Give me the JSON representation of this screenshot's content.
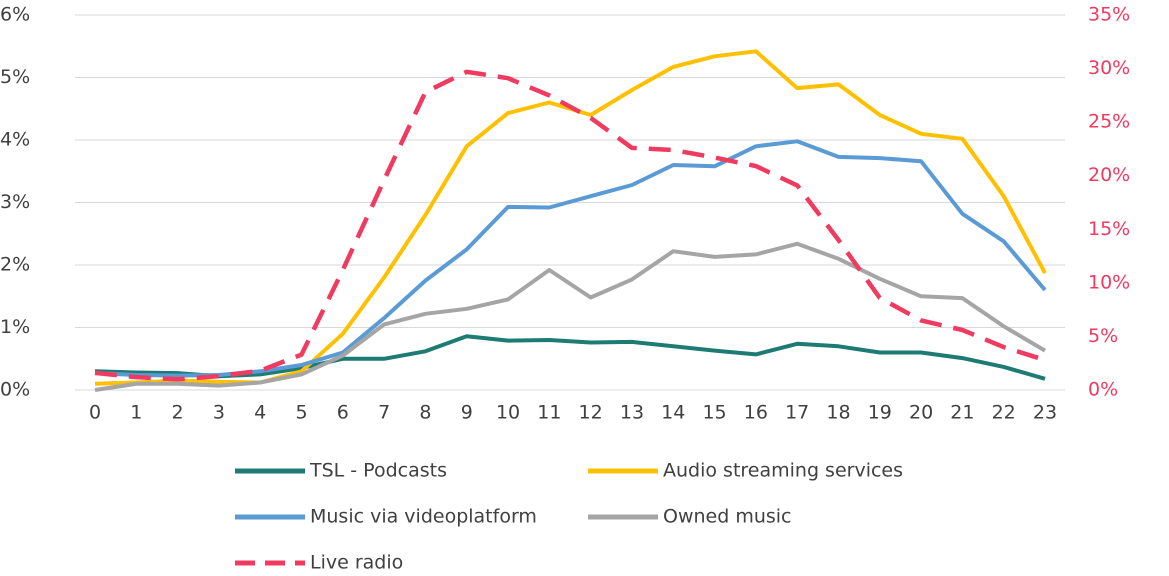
{
  "chart_data": {
    "type": "line",
    "categories": [
      "0",
      "1",
      "2",
      "3",
      "4",
      "5",
      "6",
      "7",
      "8",
      "9",
      "10",
      "11",
      "12",
      "13",
      "14",
      "15",
      "16",
      "17",
      "18",
      "19",
      "20",
      "21",
      "22",
      "23"
    ],
    "ylim": [
      0,
      6
    ],
    "yticks": [
      {
        "value": 0,
        "label": "0%"
      },
      {
        "value": 1,
        "label": "1%"
      },
      {
        "value": 2,
        "label": "2%"
      },
      {
        "value": 3,
        "label": "3%"
      },
      {
        "value": 4,
        "label": "4%"
      },
      {
        "value": 5,
        "label": "5%"
      },
      {
        "value": 6,
        "label": "6%"
      }
    ],
    "y2lim": [
      0,
      35
    ],
    "y2ticks": [
      {
        "value": 0,
        "label": "0%"
      },
      {
        "value": 5,
        "label": "5%"
      },
      {
        "value": 10,
        "label": "10%"
      },
      {
        "value": 15,
        "label": "15%"
      },
      {
        "value": 20,
        "label": "20%"
      },
      {
        "value": 25,
        "label": "25%"
      },
      {
        "value": 30,
        "label": "30%"
      },
      {
        "value": 35,
        "label": "35%"
      }
    ],
    "y2_color": "#f03a5f",
    "grid": true,
    "legend": "bottom",
    "series": [
      {
        "name": "TSL - Podcasts",
        "color": "#1e7b73",
        "values": [
          0.3,
          0.28,
          0.27,
          0.22,
          0.25,
          0.35,
          0.5,
          0.5,
          0.62,
          0.86,
          0.79,
          0.8,
          0.76,
          0.77,
          0.7,
          0.63,
          0.57,
          0.74,
          0.7,
          0.6,
          0.6,
          0.51,
          0.37,
          0.18
        ]
      },
      {
        "name": "Audio streaming services",
        "color": "#ffc000",
        "values": [
          0.1,
          0.12,
          0.15,
          0.13,
          0.12,
          0.3,
          0.9,
          1.8,
          2.8,
          3.9,
          4.43,
          4.6,
          4.4,
          4.8,
          5.17,
          5.34,
          5.42,
          4.83,
          4.89,
          4.4,
          4.1,
          4.02,
          3.1,
          1.87
        ]
      },
      {
        "name": "Music via videoplatform",
        "color": "#5b9bd5",
        "values": [
          0.27,
          0.24,
          0.23,
          0.24,
          0.3,
          0.4,
          0.6,
          1.15,
          1.75,
          2.25,
          2.93,
          2.92,
          3.1,
          3.28,
          3.6,
          3.58,
          3.9,
          3.98,
          3.73,
          3.71,
          3.66,
          2.82,
          2.38,
          1.6
        ]
      },
      {
        "name": "Owned music",
        "color": "#a5a5a5",
        "values": [
          0.0,
          0.1,
          0.1,
          0.07,
          0.12,
          0.25,
          0.55,
          1.05,
          1.22,
          1.3,
          1.45,
          1.92,
          1.48,
          1.77,
          2.22,
          2.13,
          2.17,
          2.34,
          2.1,
          1.78,
          1.5,
          1.47,
          1.02,
          0.63
        ]
      },
      {
        "name": "Live radio",
        "color": "#f03a5f",
        "axis": "y2",
        "line_style": "dashed",
        "values": [
          1.6,
          1.2,
          1.0,
          1.3,
          1.8,
          3.3,
          11.2,
          19.6,
          27.8,
          29.7,
          29.1,
          27.5,
          25.4,
          22.6,
          22.4,
          21.7,
          20.9,
          19.1,
          14.0,
          8.6,
          6.5,
          5.6,
          4.0,
          2.8
        ]
      }
    ]
  }
}
